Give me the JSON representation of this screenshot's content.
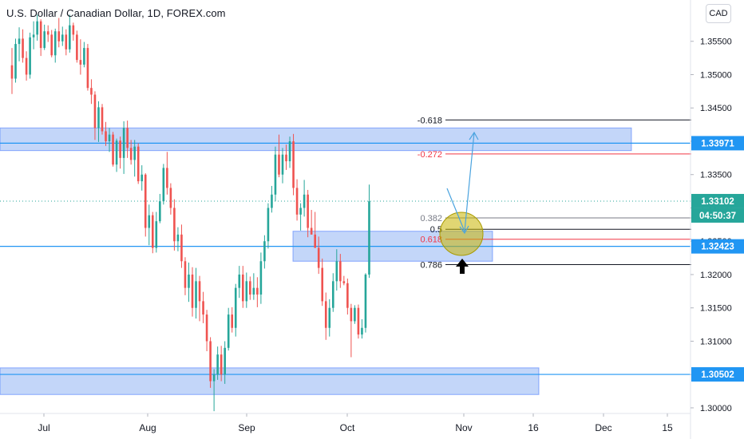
{
  "header": {
    "title": "U.S. Dollar / Canadian Dollar, 1D, FOREX.com",
    "currency": "CAD"
  },
  "colors": {
    "up": "#26a69a",
    "down": "#ef5350",
    "zone_fill": "#6f9ef0",
    "zone_stroke": "#2962ff",
    "level_line": "#2196f3",
    "fib_black": "#131722",
    "fib_red": "#f23645",
    "fib_grey": "#787b86",
    "circle_fill": "#c9b400",
    "arrow_blue": "#4aa3df"
  },
  "chart_data": {
    "type": "candlestick",
    "title": "U.S. Dollar / Canadian Dollar, 1D, FOREX.com",
    "ylim": [
      1.297,
      1.36
    ],
    "y_ticks": [
      "1.35500",
      "1.35000",
      "1.34500",
      "1.34000",
      "1.33500",
      "1.33000",
      "1.32500",
      "1.32000",
      "1.31500",
      "1.31000",
      "1.30500",
      "1.30000"
    ],
    "x_ticks": [
      "Jul",
      "Aug",
      "Sep",
      "Oct",
      "Nov",
      "16",
      "Dec",
      "15"
    ],
    "price_labels": [
      {
        "text": "1.33971",
        "value": 1.33971
      },
      {
        "text": "1.33102",
        "value": 1.33102,
        "countdown": "04:50:37"
      },
      {
        "text": "1.32423",
        "value": 1.32423
      },
      {
        "text": "1.30502",
        "value": 1.30502
      }
    ],
    "zones": [
      {
        "name": "upper-resistance",
        "from": 1.3386,
        "to": 1.342
      },
      {
        "name": "middle-support",
        "from": 1.322,
        "to": 1.3265
      },
      {
        "name": "lower-support",
        "from": 1.302,
        "to": 1.306
      }
    ],
    "fib_levels": [
      {
        "label": "-0.618",
        "value": 1.3432,
        "style": "black"
      },
      {
        "label": "-0.272",
        "value": 1.3381,
        "style": "red"
      },
      {
        "label": "0.382",
        "value": 1.3285,
        "style": "grey"
      },
      {
        "label": "0.5",
        "value": 1.3268,
        "style": "black"
      },
      {
        "label": "0.618",
        "value": 1.3253,
        "style": "red"
      },
      {
        "label": "0.786",
        "value": 1.3215,
        "style": "black"
      }
    ],
    "candles_ohlc": [
      [
        1.3514,
        1.354,
        1.3471,
        1.3494
      ],
      [
        1.3494,
        1.3554,
        1.3488,
        1.3546
      ],
      [
        1.3546,
        1.3571,
        1.352,
        1.3554
      ],
      [
        1.3554,
        1.3568,
        1.3518,
        1.3525
      ],
      [
        1.3525,
        1.3535,
        1.3491,
        1.35
      ],
      [
        1.35,
        1.3563,
        1.3494,
        1.3556
      ],
      [
        1.3556,
        1.358,
        1.3538,
        1.356
      ],
      [
        1.356,
        1.359,
        1.3551,
        1.358
      ],
      [
        1.358,
        1.3583,
        1.3528,
        1.354
      ],
      [
        1.354,
        1.3575,
        1.3537,
        1.3565
      ],
      [
        1.3565,
        1.3574,
        1.3549,
        1.356
      ],
      [
        1.356,
        1.3567,
        1.3526,
        1.3529
      ],
      [
        1.3529,
        1.3569,
        1.3518,
        1.3565
      ],
      [
        1.3565,
        1.3585,
        1.3541,
        1.355
      ],
      [
        1.355,
        1.3572,
        1.3543,
        1.356
      ],
      [
        1.356,
        1.3568,
        1.3529,
        1.3538
      ],
      [
        1.3538,
        1.359,
        1.3533,
        1.3574
      ],
      [
        1.3574,
        1.3578,
        1.3551,
        1.356
      ],
      [
        1.356,
        1.3566,
        1.3518,
        1.3522
      ],
      [
        1.3522,
        1.3553,
        1.35,
        1.3515
      ],
      [
        1.3515,
        1.3549,
        1.3511,
        1.354
      ],
      [
        1.354,
        1.3546,
        1.3476,
        1.348
      ],
      [
        1.348,
        1.3493,
        1.3456,
        1.347
      ],
      [
        1.347,
        1.3475,
        1.3402,
        1.342
      ],
      [
        1.342,
        1.346,
        1.3399,
        1.3451
      ],
      [
        1.3451,
        1.3456,
        1.341,
        1.3415
      ],
      [
        1.3415,
        1.3429,
        1.3393,
        1.34
      ],
      [
        1.34,
        1.342,
        1.3384,
        1.341
      ],
      [
        1.341,
        1.3414,
        1.3362,
        1.3365
      ],
      [
        1.3365,
        1.3404,
        1.3354,
        1.3401
      ],
      [
        1.3401,
        1.3407,
        1.3359,
        1.3375
      ],
      [
        1.3375,
        1.343,
        1.3351,
        1.342
      ],
      [
        1.342,
        1.3431,
        1.3375,
        1.339
      ],
      [
        1.339,
        1.3402,
        1.3365,
        1.3372
      ],
      [
        1.3372,
        1.3402,
        1.3347,
        1.3392
      ],
      [
        1.3392,
        1.3397,
        1.3336,
        1.334
      ],
      [
        1.334,
        1.3364,
        1.3326,
        1.335
      ],
      [
        1.335,
        1.3352,
        1.3257,
        1.327
      ],
      [
        1.327,
        1.3305,
        1.3244,
        1.3289
      ],
      [
        1.3289,
        1.3294,
        1.3232,
        1.324
      ],
      [
        1.324,
        1.3294,
        1.3233,
        1.328
      ],
      [
        1.328,
        1.3321,
        1.3277,
        1.331
      ],
      [
        1.331,
        1.3366,
        1.3305,
        1.336
      ],
      [
        1.336,
        1.3384,
        1.332,
        1.333
      ],
      [
        1.333,
        1.3337,
        1.329,
        1.33
      ],
      [
        1.33,
        1.3313,
        1.3236,
        1.325
      ],
      [
        1.325,
        1.3271,
        1.3235,
        1.326
      ],
      [
        1.326,
        1.3275,
        1.321,
        1.322
      ],
      [
        1.322,
        1.3226,
        1.3169,
        1.318
      ],
      [
        1.318,
        1.3218,
        1.3159,
        1.32
      ],
      [
        1.32,
        1.3211,
        1.3137,
        1.315
      ],
      [
        1.315,
        1.321,
        1.3134,
        1.319
      ],
      [
        1.319,
        1.3198,
        1.313,
        1.316
      ],
      [
        1.316,
        1.3174,
        1.3127,
        1.314
      ],
      [
        1.314,
        1.3147,
        1.3085,
        1.31
      ],
      [
        1.31,
        1.3106,
        1.303,
        1.304
      ],
      [
        1.304,
        1.3058,
        1.2995,
        1.305
      ],
      [
        1.305,
        1.3092,
        1.3042,
        1.308
      ],
      [
        1.308,
        1.3093,
        1.304,
        1.305
      ],
      [
        1.305,
        1.31,
        1.3036,
        1.309
      ],
      [
        1.309,
        1.315,
        1.3086,
        1.314
      ],
      [
        1.314,
        1.3151,
        1.3113,
        1.312
      ],
      [
        1.312,
        1.3186,
        1.3107,
        1.318
      ],
      [
        1.318,
        1.3213,
        1.3165,
        1.32
      ],
      [
        1.32,
        1.3213,
        1.315,
        1.316
      ],
      [
        1.316,
        1.3203,
        1.315,
        1.319
      ],
      [
        1.319,
        1.3197,
        1.3162,
        1.317
      ],
      [
        1.317,
        1.3202,
        1.3162,
        1.318
      ],
      [
        1.318,
        1.3196,
        1.3151,
        1.317
      ],
      [
        1.317,
        1.3233,
        1.3156,
        1.322
      ],
      [
        1.322,
        1.3259,
        1.3209,
        1.325
      ],
      [
        1.325,
        1.3307,
        1.3239,
        1.33
      ],
      [
        1.33,
        1.3333,
        1.3293,
        1.332
      ],
      [
        1.332,
        1.3392,
        1.331,
        1.338
      ],
      [
        1.338,
        1.341,
        1.3346,
        1.335
      ],
      [
        1.335,
        1.339,
        1.3337,
        1.338
      ],
      [
        1.338,
        1.3395,
        1.3357,
        1.337
      ],
      [
        1.337,
        1.3407,
        1.336,
        1.34
      ],
      [
        1.34,
        1.3411,
        1.3319,
        1.333
      ],
      [
        1.333,
        1.3343,
        1.3281,
        1.329
      ],
      [
        1.329,
        1.3307,
        1.3266,
        1.33
      ],
      [
        1.33,
        1.3342,
        1.3287,
        1.332
      ],
      [
        1.332,
        1.3327,
        1.3256,
        1.327
      ],
      [
        1.327,
        1.3297,
        1.326,
        1.326
      ],
      [
        1.326,
        1.3294,
        1.3252,
        1.324
      ],
      [
        1.324,
        1.3257,
        1.3201,
        1.321
      ],
      [
        1.321,
        1.3224,
        1.3153,
        1.316
      ],
      [
        1.316,
        1.3173,
        1.3102,
        1.312
      ],
      [
        1.312,
        1.3163,
        1.3107,
        1.315
      ],
      [
        1.315,
        1.3202,
        1.3144,
        1.319
      ],
      [
        1.319,
        1.3238,
        1.3176,
        1.322
      ],
      [
        1.322,
        1.3231,
        1.318,
        1.319
      ],
      [
        1.319,
        1.3198,
        1.3184,
        1.3187
      ],
      [
        1.3187,
        1.3194,
        1.314,
        1.315
      ],
      [
        1.315,
        1.3156,
        1.3076,
        1.313
      ],
      [
        1.313,
        1.3154,
        1.3126,
        1.315
      ],
      [
        1.315,
        1.3155,
        1.3104,
        1.311
      ],
      [
        1.311,
        1.3133,
        1.3104,
        1.312
      ],
      [
        1.312,
        1.3202,
        1.3113,
        1.32
      ],
      [
        1.32,
        1.3335,
        1.3195,
        1.331
      ]
    ]
  }
}
